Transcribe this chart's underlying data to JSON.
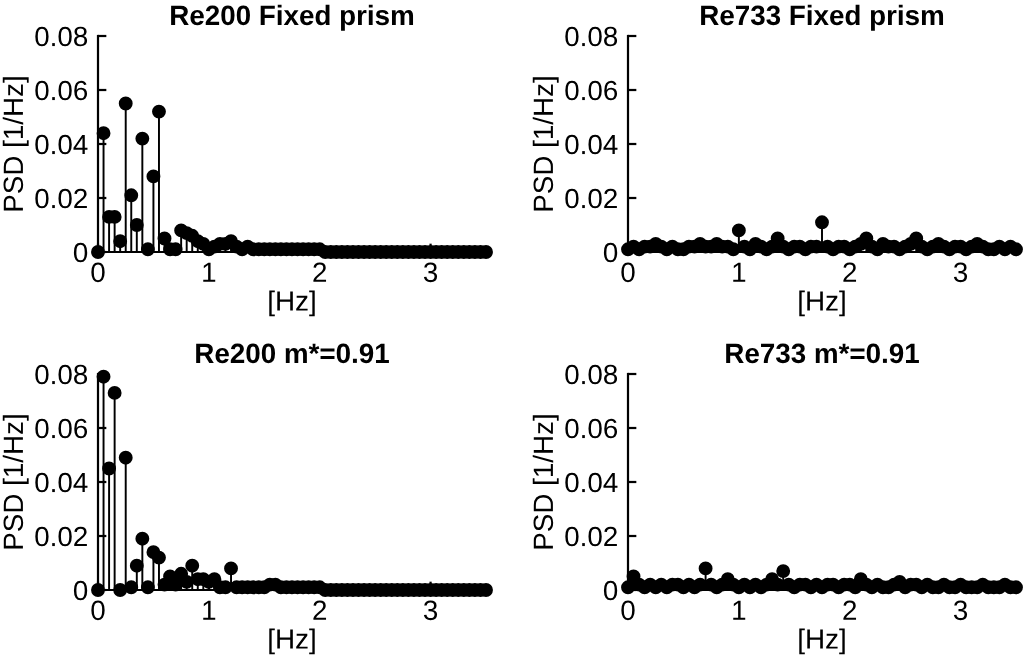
{
  "chart_data": [
    {
      "type": "lollipop",
      "title": "Re200 Fixed prism",
      "xlabel": "[Hz]",
      "ylabel": "PSD [1/Hz]",
      "xlim": [
        0,
        3.5
      ],
      "ylim": [
        0,
        0.08
      ],
      "xticks": [
        0,
        1,
        2,
        3
      ],
      "yticks": [
        0,
        0.02,
        0.04,
        0.06,
        0.08
      ],
      "marker": "circle",
      "grid": false,
      "x": [
        0,
        0.05,
        0.1,
        0.15,
        0.2,
        0.25,
        0.3,
        0.35,
        0.4,
        0.45,
        0.5,
        0.55,
        0.6,
        0.65,
        0.7,
        0.75,
        0.8,
        0.85,
        0.9,
        0.95,
        1.0,
        1.05,
        1.1,
        1.15,
        1.2,
        1.25,
        1.3,
        1.35,
        1.4,
        1.45,
        1.5,
        1.55,
        1.6,
        1.65,
        1.7,
        1.75,
        1.8,
        1.85,
        1.9,
        1.95,
        2.0,
        2.05,
        2.1,
        2.15,
        2.2,
        2.25,
        2.3,
        2.35,
        2.4,
        2.45,
        2.5,
        2.55,
        2.6,
        2.65,
        2.7,
        2.75,
        2.8,
        2.85,
        2.9,
        2.95,
        3.0,
        3.05,
        3.1,
        3.15,
        3.2,
        3.25,
        3.3,
        3.35,
        3.4,
        3.45,
        3.5
      ],
      "series": [
        {
          "color": "#000000",
          "values": [
            0,
            0.044,
            0.013,
            0.013,
            0.004,
            0.055,
            0.021,
            0.01,
            0.042,
            0.001,
            0.028,
            0.052,
            0.005,
            0.001,
            0.001,
            0.008,
            0.007,
            0.006,
            0.004,
            0.003,
            0.001,
            0.002,
            0.003,
            0.003,
            0.004,
            0.002,
            0.001,
            0.002,
            0.001,
            0.001,
            0.001,
            0.001,
            0.001,
            0.001,
            0.001,
            0.001,
            0.001,
            0.001,
            0.001,
            0.001,
            0.001,
            0,
            0,
            0,
            0,
            0,
            0,
            0,
            0,
            0,
            0,
            0,
            0,
            0,
            0,
            0,
            0,
            0,
            0,
            0,
            0,
            0,
            0,
            0,
            0,
            0,
            0,
            0,
            0,
            0,
            0
          ]
        }
      ]
    },
    {
      "type": "lollipop",
      "title": "Re733 Fixed prism",
      "xlabel": "[Hz]",
      "ylabel": "PSD [1/Hz]",
      "xlim": [
        0,
        3.5
      ],
      "ylim": [
        0,
        0.08
      ],
      "xticks": [
        0,
        1,
        2,
        3
      ],
      "yticks": [
        0,
        0.02,
        0.04,
        0.06,
        0.08
      ],
      "marker": "circle",
      "grid": false,
      "x": [
        0,
        0.05,
        0.1,
        0.15,
        0.2,
        0.25,
        0.3,
        0.35,
        0.4,
        0.45,
        0.5,
        0.55,
        0.6,
        0.65,
        0.7,
        0.75,
        0.8,
        0.85,
        0.9,
        0.95,
        1.0,
        1.05,
        1.1,
        1.15,
        1.2,
        1.25,
        1.3,
        1.35,
        1.4,
        1.45,
        1.5,
        1.55,
        1.6,
        1.65,
        1.7,
        1.75,
        1.8,
        1.85,
        1.9,
        1.95,
        2.0,
        2.05,
        2.1,
        2.15,
        2.2,
        2.25,
        2.3,
        2.35,
        2.4,
        2.45,
        2.5,
        2.55,
        2.6,
        2.65,
        2.7,
        2.75,
        2.8,
        2.85,
        2.9,
        2.95,
        3.0,
        3.05,
        3.1,
        3.15,
        3.2,
        3.25,
        3.3,
        3.35,
        3.4,
        3.45,
        3.5
      ],
      "series": [
        {
          "color": "#000000",
          "values": [
            0.001,
            0.002,
            0.001,
            0.002,
            0.002,
            0.003,
            0.002,
            0.001,
            0.002,
            0.001,
            0.001,
            0.002,
            0.002,
            0.003,
            0.002,
            0.002,
            0.003,
            0.002,
            0.002,
            0.001,
            0.008,
            0.002,
            0.001,
            0.003,
            0.002,
            0.001,
            0.002,
            0.005,
            0.002,
            0.001,
            0.002,
            0.002,
            0.001,
            0.002,
            0.002,
            0.011,
            0.002,
            0.001,
            0.002,
            0.002,
            0.001,
            0.002,
            0.003,
            0.005,
            0.002,
            0.001,
            0.003,
            0.002,
            0.002,
            0.001,
            0.002,
            0.003,
            0.005,
            0.002,
            0.001,
            0.002,
            0.003,
            0.002,
            0.001,
            0.002,
            0.002,
            0.001,
            0.002,
            0.003,
            0.002,
            0.001,
            0.001,
            0.002,
            0.001,
            0.002,
            0.001
          ]
        }
      ]
    },
    {
      "type": "lollipop",
      "title": "Re200 m*=0.91",
      "xlabel": "[Hz]",
      "ylabel": "PSD [1/Hz]",
      "xlim": [
        0,
        3.5
      ],
      "ylim": [
        0,
        0.08
      ],
      "xticks": [
        0,
        1,
        2,
        3
      ],
      "yticks": [
        0,
        0.02,
        0.04,
        0.06,
        0.08
      ],
      "marker": "circle",
      "grid": false,
      "x": [
        0,
        0.05,
        0.1,
        0.15,
        0.2,
        0.25,
        0.3,
        0.35,
        0.4,
        0.45,
        0.5,
        0.55,
        0.6,
        0.65,
        0.7,
        0.75,
        0.8,
        0.85,
        0.9,
        0.95,
        1.0,
        1.05,
        1.1,
        1.15,
        1.2,
        1.25,
        1.3,
        1.35,
        1.4,
        1.45,
        1.5,
        1.55,
        1.6,
        1.65,
        1.7,
        1.75,
        1.8,
        1.85,
        1.9,
        1.95,
        2.0,
        2.05,
        2.1,
        2.15,
        2.2,
        2.25,
        2.3,
        2.35,
        2.4,
        2.45,
        2.5,
        2.55,
        2.6,
        2.65,
        2.7,
        2.75,
        2.8,
        2.85,
        2.9,
        2.95,
        3.0,
        3.05,
        3.1,
        3.15,
        3.2,
        3.25,
        3.3,
        3.35,
        3.4,
        3.45,
        3.5
      ],
      "series": [
        {
          "color": "#000000",
          "values": [
            0,
            0.079,
            0.045,
            0.073,
            0,
            0.049,
            0.001,
            0.009,
            0.019,
            0.001,
            0.014,
            0.012,
            0.002,
            0.005,
            0.002,
            0.006,
            0.003,
            0.009,
            0.004,
            0.004,
            0.003,
            0.004,
            0.001,
            0.001,
            0.008,
            0.001,
            0.001,
            0.001,
            0.001,
            0.001,
            0.001,
            0.002,
            0.002,
            0.001,
            0.001,
            0.001,
            0.001,
            0.001,
            0.001,
            0.001,
            0.001,
            0,
            0,
            0,
            0,
            0,
            0,
            0,
            0,
            0,
            0,
            0,
            0,
            0,
            0,
            0,
            0,
            0,
            0,
            0,
            0,
            0,
            0,
            0,
            0,
            0,
            0,
            0,
            0,
            0,
            0
          ]
        }
      ]
    },
    {
      "type": "lollipop",
      "title": "Re733 m*=0.91",
      "xlabel": "[Hz]",
      "ylabel": "PSD [1/Hz]",
      "xlim": [
        0,
        3.5
      ],
      "ylim": [
        0,
        0.08
      ],
      "xticks": [
        0,
        1,
        2,
        3
      ],
      "yticks": [
        0,
        0.02,
        0.04,
        0.06,
        0.08
      ],
      "marker": "circle",
      "grid": false,
      "x": [
        0,
        0.05,
        0.1,
        0.15,
        0.2,
        0.25,
        0.3,
        0.35,
        0.4,
        0.45,
        0.5,
        0.55,
        0.6,
        0.65,
        0.7,
        0.75,
        0.8,
        0.85,
        0.9,
        0.95,
        1.0,
        1.05,
        1.1,
        1.15,
        1.2,
        1.25,
        1.3,
        1.35,
        1.4,
        1.45,
        1.5,
        1.55,
        1.6,
        1.65,
        1.7,
        1.75,
        1.8,
        1.85,
        1.9,
        1.95,
        2.0,
        2.05,
        2.1,
        2.15,
        2.2,
        2.25,
        2.3,
        2.35,
        2.4,
        2.45,
        2.5,
        2.55,
        2.6,
        2.65,
        2.7,
        2.75,
        2.8,
        2.85,
        2.9,
        2.95,
        3.0,
        3.05,
        3.1,
        3.15,
        3.2,
        3.25,
        3.3,
        3.35,
        3.4,
        3.45,
        3.5
      ],
      "series": [
        {
          "color": "#000000",
          "values": [
            0.001,
            0.005,
            0.002,
            0.001,
            0.002,
            0.001,
            0.002,
            0.001,
            0.002,
            0.002,
            0.001,
            0.002,
            0.001,
            0.002,
            0.008,
            0.002,
            0.001,
            0.002,
            0.004,
            0.002,
            0.001,
            0.002,
            0.001,
            0.002,
            0.001,
            0.002,
            0.004,
            0.002,
            0.007,
            0.002,
            0.001,
            0.002,
            0.002,
            0.001,
            0.002,
            0.001,
            0.002,
            0.002,
            0.001,
            0.002,
            0.002,
            0.001,
            0.004,
            0.002,
            0.001,
            0.002,
            0.001,
            0.001,
            0.002,
            0.003,
            0.001,
            0.002,
            0.002,
            0.001,
            0.002,
            0.001,
            0.001,
            0.002,
            0.001,
            0.001,
            0.002,
            0.001,
            0.001,
            0.001,
            0.002,
            0.001,
            0.001,
            0.001,
            0.002,
            0.001,
            0.001
          ]
        }
      ]
    }
  ]
}
